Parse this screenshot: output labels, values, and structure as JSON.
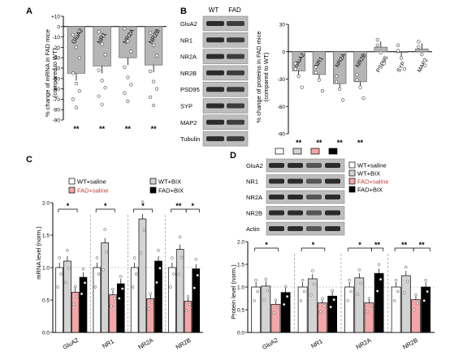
{
  "panels": {
    "A": {
      "letter": "A",
      "ylabel_1": "% change of mRNA in FAD mice",
      "ylabel_2": "(compared to WT)",
      "yticks": [
        "+10",
        "0",
        "-10",
        "-20",
        "-30",
        "-40",
        "-50",
        "-60",
        "-70",
        "-80",
        "-90"
      ],
      "significance": "**"
    },
    "B": {
      "letter": "B",
      "lanes": [
        "WT",
        "FAD"
      ],
      "blot_labels": [
        "GluA2",
        "NR1",
        "NR2A",
        "NR2B",
        "PSD95",
        "SYP",
        "MAP2",
        "Tubulin"
      ],
      "ylabel_1": "% change of proteins in FAD mice",
      "ylabel_2": "(compared to WT)",
      "yticks": [
        "30",
        "0",
        "-30",
        "-60",
        "-90"
      ],
      "significance": "**"
    },
    "C": {
      "letter": "C",
      "legend": [
        "WT+saline",
        "WT+BIX",
        "FAD+saline",
        "FAD+BIX"
      ],
      "ylabel": "mRNA level (norm.)",
      "yticks": [
        "0.0",
        "0.5",
        "1.0",
        "1.5",
        "2.0"
      ],
      "sig_marks": [
        "*",
        "*",
        "*",
        "**",
        "*"
      ]
    },
    "D": {
      "letter": "D",
      "legend": [
        "WT+saline",
        "WT+BIX",
        "FAD+saline",
        "FAD+BIX"
      ],
      "blot_labels": [
        "GluA2",
        "NR1",
        "NR2A",
        "NR2B",
        "Actin"
      ],
      "ylabel": "Protein level (norm.)",
      "yticks": [
        "0.0",
        "0.5",
        "1.0",
        "1.5",
        "2.0"
      ],
      "sig_marks": [
        "*",
        "*",
        "*",
        "**",
        "**",
        "**"
      ]
    }
  },
  "colors": {
    "wt_saline": "#ffffff",
    "wt_bix": "#d3d3d3",
    "fad_saline": "#f4a6a6",
    "fad_bix": "#000000",
    "bar_gray": "#b5b5b5"
  },
  "chart_data": [
    {
      "type": "bar",
      "panel": "A",
      "categories": [
        "GluA2",
        "NR1",
        "NR2A",
        "NR2B"
      ],
      "values": [
        -45,
        -38,
        -30,
        -37
      ],
      "ylim": [
        -90,
        10
      ],
      "title": "",
      "xlabel": "",
      "ylabel": "% change of mRNA in FAD mice (compared to WT)"
    },
    {
      "type": "bar",
      "panel": "B",
      "categories": [
        "GluA2",
        "NR1",
        "NR2A",
        "NR2B",
        "PSD95",
        "SYP",
        "MAP2"
      ],
      "values": [
        -21,
        -25,
        -35,
        -33,
        5,
        -1,
        3
      ],
      "ylim": [
        -90,
        30
      ],
      "title": "",
      "xlabel": "",
      "ylabel": "% change of proteins in FAD mice (compared to WT)"
    },
    {
      "type": "bar",
      "panel": "C",
      "categories": [
        "GluA2",
        "NR1",
        "NR2A",
        "NR2B"
      ],
      "series": [
        {
          "name": "WT+saline",
          "values": [
            1.0,
            1.0,
            1.0,
            1.0
          ]
        },
        {
          "name": "WT+BIX",
          "values": [
            1.1,
            1.38,
            1.75,
            1.28
          ]
        },
        {
          "name": "FAD+saline",
          "values": [
            0.62,
            0.58,
            0.52,
            0.48
          ]
        },
        {
          "name": "FAD+BIX",
          "values": [
            0.85,
            0.75,
            1.1,
            0.98
          ]
        }
      ],
      "ylim": [
        0,
        2.0
      ],
      "title": "",
      "xlabel": "",
      "ylabel": "mRNA level (norm.)"
    },
    {
      "type": "bar",
      "panel": "D",
      "categories": [
        "GluA2",
        "NR1",
        "NR2A",
        "NR2B"
      ],
      "series": [
        {
          "name": "WT+saline",
          "values": [
            1.0,
            1.0,
            1.0,
            1.0
          ]
        },
        {
          "name": "WT+BIX",
          "values": [
            1.02,
            1.18,
            1.2,
            1.25
          ]
        },
        {
          "name": "FAD+saline",
          "values": [
            0.62,
            0.65,
            0.65,
            0.72
          ]
        },
        {
          "name": "FAD+BIX",
          "values": [
            0.88,
            0.8,
            1.3,
            1.0
          ]
        }
      ],
      "ylim": [
        0,
        2.0
      ],
      "title": "",
      "xlabel": "",
      "ylabel": "Protein level (norm.)"
    }
  ]
}
